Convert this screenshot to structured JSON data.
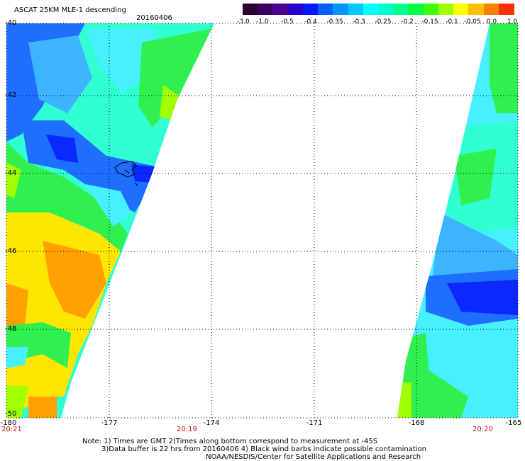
{
  "header": {
    "title": "ASCAT 25KM MLE-1 descending",
    "date": "20160406"
  },
  "colorbar": {
    "colors": [
      "#2a0030",
      "#3a0060",
      "#4b0090",
      "#2a00c8",
      "#0018ff",
      "#0060ff",
      "#0096ff",
      "#00c8ff",
      "#00ffff",
      "#00ffd0",
      "#00ff90",
      "#00ff40",
      "#40ff00",
      "#a0ff00",
      "#ffff00",
      "#ffc000",
      "#ff8000",
      "#ff3000"
    ],
    "labels": [
      "-3.0",
      "-1.0",
      "-0.5",
      "-0.4",
      "-0.35",
      "-0.3",
      "-0.25",
      "-0.2",
      "-0.15",
      "-0.1",
      "-0.05",
      "0.0",
      "1.0"
    ]
  },
  "axes": {
    "lat_labels": [
      "-40",
      "-42",
      "-44",
      "-46",
      "-48",
      "-50"
    ],
    "lon_labels": [
      "-180",
      "-177",
      "-174",
      "-171",
      "-168",
      "-165"
    ]
  },
  "times": {
    "left": "20:21",
    "middle": "20:19",
    "right": "20:20"
  },
  "footer": {
    "line1": "Note: 1) Times are GMT 2)Times along bottom correspond to measurement at -45S",
    "line2": "3)Data buffer is 22 hrs from 20160406 4) Black wind barbs indicate possible contamination",
    "line3": "NOAA/NESDIS/Center for Satellite Applications and Research"
  },
  "map_colors": {
    "deep_blue": "#0a28ff",
    "blue": "#1e6eff",
    "light_blue": "#3cb4ff",
    "cyan": "#46f0ff",
    "aqua": "#30ffd2",
    "green": "#30f050",
    "lime": "#a0ff00",
    "yellow": "#ffe600",
    "orange": "#ffa000"
  }
}
